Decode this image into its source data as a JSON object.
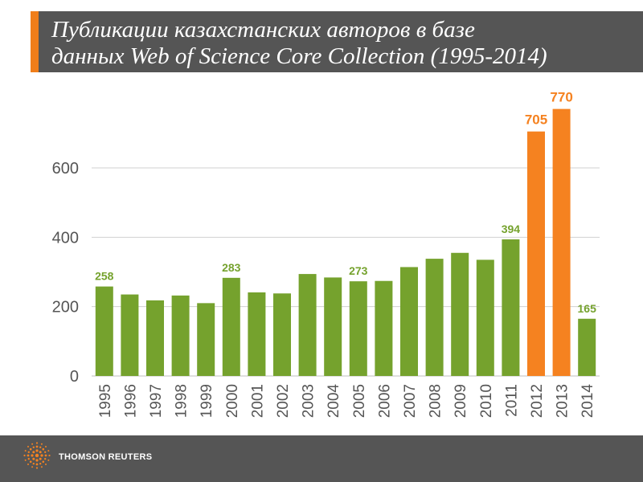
{
  "title": {
    "line1": "Публикации казахстанских авторов в базе",
    "line2": "данных Web of Science Core Collection (1995-2014)"
  },
  "colors": {
    "green": "#75a22d",
    "orange": "#f58220",
    "band": "#555555",
    "accent": "#f07e1a",
    "grid": "#d0d0d0",
    "axis_text": "#555555"
  },
  "chart_data": {
    "type": "bar",
    "title": "Публикации казахстанских авторов в базе данных Web of Science Core Collection (1995-2014)",
    "categories": [
      "1995",
      "1996",
      "1997",
      "1998",
      "1999",
      "2000",
      "2001",
      "2002",
      "2003",
      "2004",
      "2005",
      "2006",
      "2007",
      "2008",
      "2009",
      "2010",
      "2011",
      "2012",
      "2013",
      "2014"
    ],
    "values": [
      258,
      235,
      218,
      232,
      210,
      283,
      241,
      238,
      294,
      284,
      273,
      274,
      314,
      338,
      355,
      335,
      394,
      705,
      770,
      165
    ],
    "highlighted": [
      "2012",
      "2013"
    ],
    "data_labels": [
      {
        "category": "1995",
        "text": "258"
      },
      {
        "category": "2000",
        "text": "283"
      },
      {
        "category": "2005",
        "text": "273"
      },
      {
        "category": "2011",
        "text": "394"
      },
      {
        "category": "2012",
        "text": "705"
      },
      {
        "category": "2013",
        "text": "770"
      },
      {
        "category": "2014",
        "text": "165"
      }
    ],
    "ylim": [
      0,
      800
    ],
    "yticks": [
      0,
      200,
      400,
      600
    ],
    "grid": true,
    "xlabel": "",
    "ylabel": ""
  },
  "footer": {
    "brand": "THOMSON REUTERS",
    "logo_icon": "thomson-reuters-logo-icon"
  }
}
